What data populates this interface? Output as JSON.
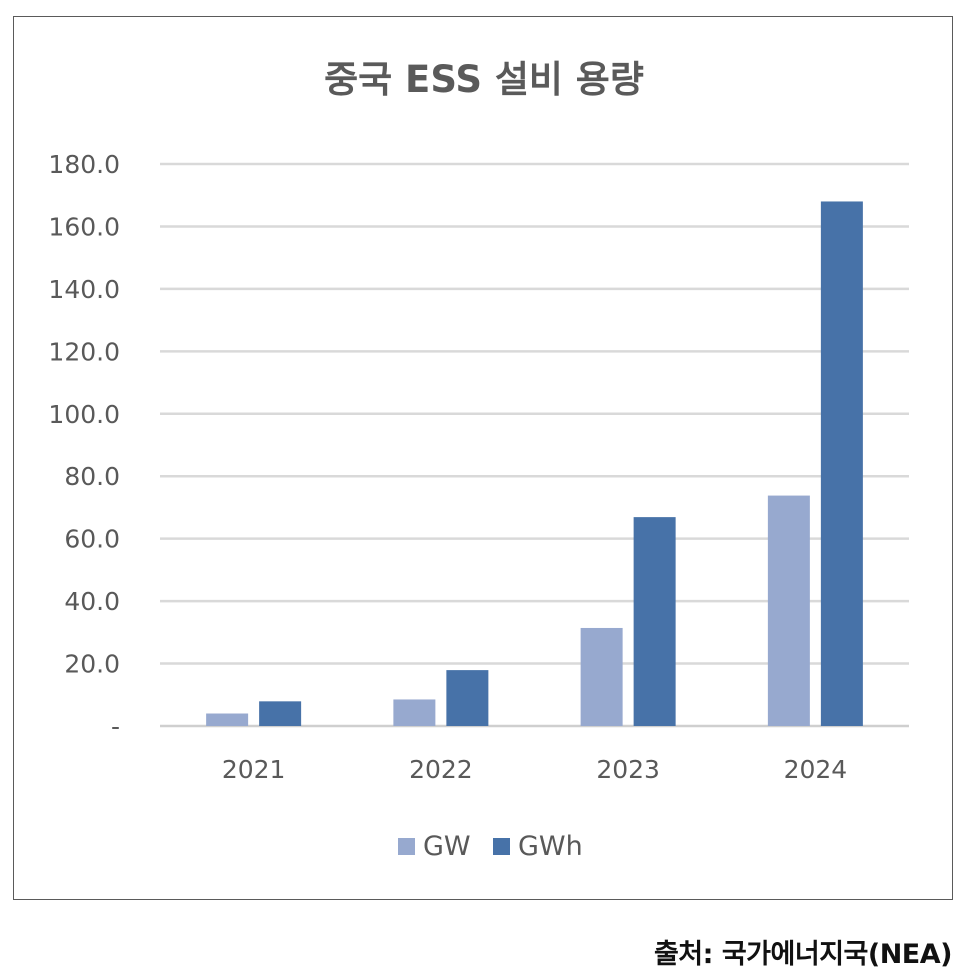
{
  "chart_data": {
    "type": "bar",
    "title": "중국 ESS 설비 용량",
    "categories": [
      "2021",
      "2022",
      "2023",
      "2024"
    ],
    "series": [
      {
        "name": "GW",
        "values": [
          4.0,
          8.5,
          31.4,
          73.8
        ],
        "color": "#97a9cf"
      },
      {
        "name": "GWh",
        "values": [
          7.9,
          17.9,
          66.9,
          168.0
        ],
        "color": "#4772a8"
      }
    ],
    "yticks": [
      "-",
      "20.0",
      "40.0",
      "60.0",
      "80.0",
      "100.0",
      "120.0",
      "140.0",
      "160.0",
      "180.0"
    ],
    "ylim": [
      0,
      180
    ],
    "grid": true,
    "legend_position": "bottom"
  },
  "source": "출처: 국가에너지국(NEA)"
}
